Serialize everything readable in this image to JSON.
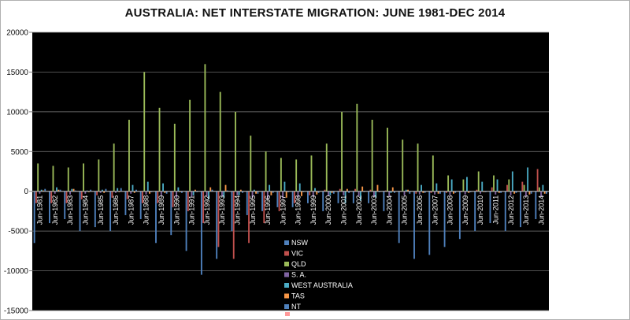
{
  "chart_data": {
    "type": "bar",
    "title": "AUSTRALIA: NET INTERSTATE MIGRATION: JUNE 1981-DEC 2014",
    "ylim": [
      -15000,
      20000
    ],
    "yticks": [
      -15000,
      -10000,
      -5000,
      0,
      5000,
      10000,
      15000,
      20000
    ],
    "grid": true,
    "legend_position": "bottom-center",
    "plot_background": "#000000",
    "x_tick_labels": [
      "Jun-1981",
      "Jun-1982",
      "Jun-1983",
      "Jun-1984",
      "Jun-1985",
      "Jun-1986",
      "Jun-1987",
      "Jun-1988",
      "Jun-1989",
      "Jun-1990",
      "Jun-1991",
      "Jun-1992",
      "Jun-1993",
      "Jun-1994",
      "Jun-1995",
      "Jun-1996",
      "Jun-1997",
      "Jun-1998",
      "Jun-1999",
      "Jun-2000",
      "Jun-2001",
      "Jun-2002",
      "Jun-2003",
      "Jun-2004",
      "Jun-2005",
      "Jun-2006",
      "Jun-2007",
      "Jun-2008",
      "Jun-2009",
      "Jun-2010",
      "Jun-2011",
      "Jun-2012",
      "Jun-2013",
      "Jun-2014"
    ],
    "series": [
      {
        "name": "NSW",
        "color": "#4f81bd",
        "values": [
          -6500,
          -4000,
          -3500,
          -5000,
          -4500,
          -5000,
          -3000,
          -3500,
          -6500,
          -5500,
          -7500,
          -10500,
          -8500,
          -5000,
          -3000,
          -2500,
          -2000,
          -2000,
          -1500,
          -2500,
          -1500,
          -1500,
          -1500,
          -2500,
          -6500,
          -8500,
          -8000,
          -7000,
          -6000,
          -5000,
          -4000,
          -5000,
          -4500,
          -3500
        ]
      },
      {
        "name": "VIC",
        "color": "#c0504d",
        "values": [
          -1500,
          -1500,
          -1500,
          -1000,
          -500,
          -800,
          -1000,
          -1500,
          -1500,
          -2000,
          -2500,
          -4000,
          -7000,
          -8500,
          -6500,
          -4000,
          -2500,
          -1500,
          -500,
          200,
          300,
          300,
          200,
          100,
          0,
          -300,
          -200,
          -200,
          -100,
          200,
          500,
          800,
          1200,
          2800
        ]
      },
      {
        "name": "QLD",
        "color": "#9bbb59",
        "values": [
          3500,
          3200,
          3000,
          3500,
          4000,
          6000,
          9000,
          15000,
          10500,
          8500,
          11500,
          16000,
          12500,
          10000,
          7000,
          5000,
          4200,
          4000,
          4500,
          6000,
          10000,
          11000,
          9000,
          8000,
          6500,
          6000,
          4500,
          2000,
          1500,
          2500,
          2000,
          1500,
          800,
          500
        ]
      },
      {
        "name": "S. A.",
        "color": "#8064a2",
        "values": [
          -300,
          -300,
          -400,
          -300,
          -200,
          -200,
          -300,
          -400,
          -500,
          -800,
          -700,
          -600,
          -600,
          -500,
          -800,
          -1000,
          -900,
          -800,
          -700,
          -600,
          -500,
          -600,
          -700,
          -600,
          -500,
          -400,
          -400,
          -500,
          -400,
          -300,
          -400,
          -500,
          -600,
          -700
        ]
      },
      {
        "name": "WEST AUSTRALIA",
        "color": "#4bacc6",
        "values": [
          200,
          500,
          300,
          100,
          200,
          400,
          800,
          1200,
          1000,
          500,
          -500,
          -1000,
          -800,
          -500,
          200,
          800,
          1200,
          1000,
          400,
          -500,
          -1500,
          -1200,
          -800,
          -200,
          200,
          800,
          1000,
          1500,
          1800,
          1200,
          1500,
          2500,
          3000,
          800
        ]
      },
      {
        "name": "TAS",
        "color": "#f79646",
        "values": [
          100,
          200,
          300,
          -100,
          -200,
          -100,
          -200,
          -300,
          -200,
          -100,
          200,
          500,
          800,
          200,
          -300,
          -500,
          -800,
          -600,
          -400,
          -200,
          300,
          600,
          800,
          500,
          200,
          -200,
          -300,
          -300,
          -200,
          -100,
          -200,
          -300,
          -400,
          -300
        ]
      },
      {
        "name": "NT",
        "color": "#4f81bd",
        "values": [
          300,
          200,
          100,
          200,
          300,
          400,
          200,
          -100,
          -300,
          -200,
          -100,
          200,
          100,
          -200,
          -300,
          -200,
          -100,
          -100,
          -200,
          -300,
          -200,
          -100,
          -100,
          -200,
          -300,
          -200,
          -300,
          -200,
          -100,
          -100,
          -200,
          -200,
          -300,
          -300
        ]
      }
    ]
  }
}
